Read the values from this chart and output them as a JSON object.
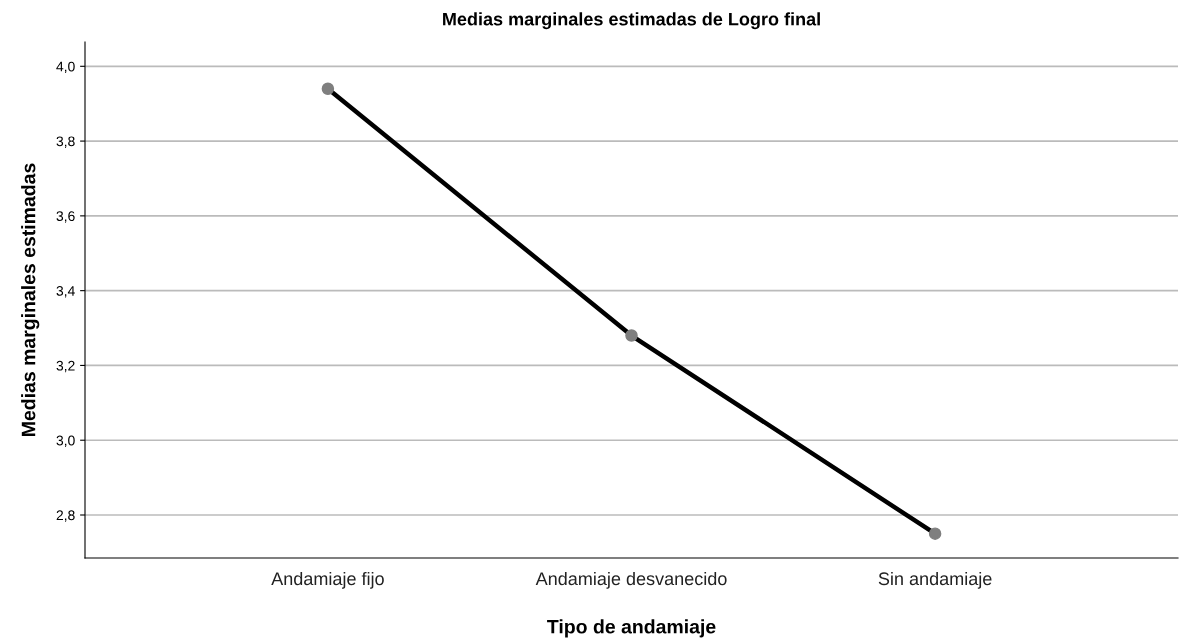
{
  "chart_data": {
    "type": "line",
    "title": "Medias marginales estimadas de Logro final",
    "xlabel": "Tipo de andamiaje",
    "ylabel": "Medias marginales estimadas",
    "categories": [
      "Andamiaje fijo",
      "Andamiaje desvanecido",
      "Sin andamiaje"
    ],
    "series": [
      {
        "color": "#000000",
        "values": [
          3.94,
          3.28,
          2.75
        ]
      }
    ],
    "marker": "circle",
    "line_style": "solid",
    "ylim": [
      2.685,
      4.065
    ],
    "yticks": [
      {
        "value": 2.8,
        "label": "2,8"
      },
      {
        "value": 3.0,
        "label": "3,0"
      },
      {
        "value": 3.2,
        "label": "3,2"
      },
      {
        "value": 3.4,
        "label": "3,4"
      },
      {
        "value": 3.6,
        "label": "3,6"
      },
      {
        "value": 3.8,
        "label": "3,8"
      },
      {
        "value": 4.0,
        "label": "4,0"
      }
    ],
    "grid": "y",
    "legend": false
  }
}
